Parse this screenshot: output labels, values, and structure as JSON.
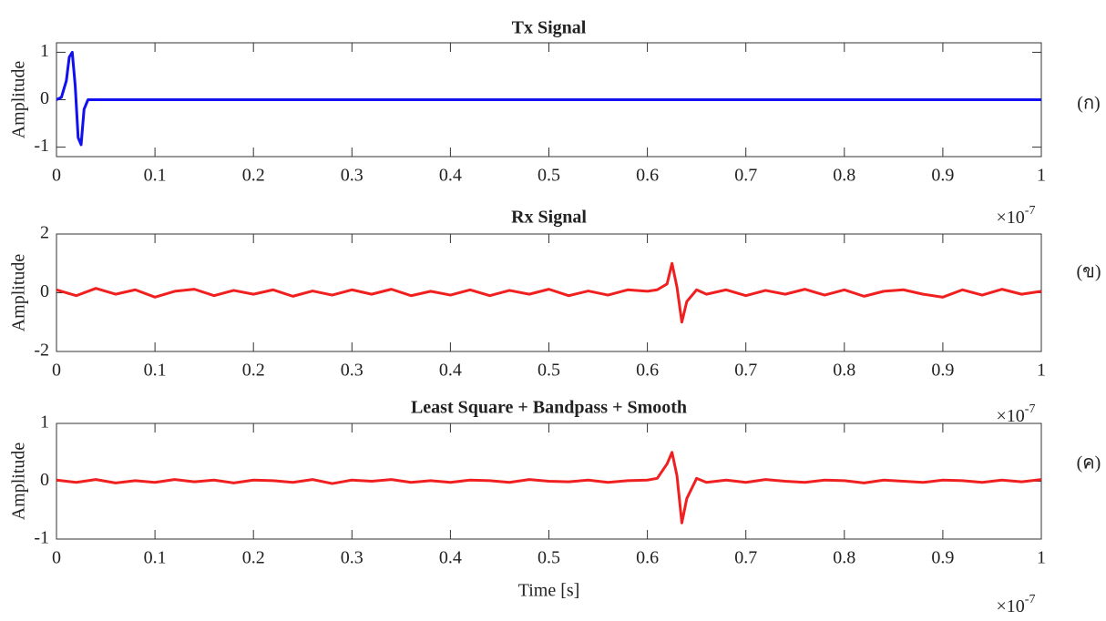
{
  "chart_data": [
    {
      "type": "line",
      "title": "Tx Signal",
      "y_label": "Amplitude",
      "panel_label": "(ก)",
      "x_multiplier": "×10",
      "x_exponent": "-7",
      "xlim": [
        0,
        1
      ],
      "xticks": [
        0,
        0.1,
        0.2,
        0.3,
        0.4,
        0.5,
        0.6,
        0.7,
        0.8,
        0.9,
        1
      ],
      "ylim": [
        -1.2,
        1.2
      ],
      "yticks": [
        -1,
        0,
        1
      ],
      "grid": false,
      "x": [
        0,
        0.005,
        0.01,
        0.013,
        0.016,
        0.019,
        0.022,
        0.025,
        0.028,
        0.032,
        0.05,
        0.1,
        0.2,
        0.3,
        0.4,
        0.5,
        0.6,
        0.7,
        0.8,
        0.9,
        1
      ],
      "series": [
        {
          "color": "#1010f0",
          "values": [
            0,
            0.05,
            0.4,
            0.9,
            1,
            0.3,
            -0.8,
            -0.95,
            -0.2,
            0,
            0,
            0,
            0,
            0,
            0,
            0,
            0,
            0,
            0,
            0,
            0
          ]
        }
      ]
    },
    {
      "type": "line",
      "title": "Rx Signal",
      "y_label": "Amplitude",
      "panel_label": "(ข)",
      "x_multiplier": "×10",
      "x_exponent": "-7",
      "xlim": [
        0,
        1
      ],
      "xticks": [
        0,
        0.1,
        0.2,
        0.3,
        0.4,
        0.5,
        0.6,
        0.7,
        0.8,
        0.9,
        1
      ],
      "ylim": [
        -2,
        2
      ],
      "yticks": [
        -2,
        0,
        2
      ],
      "grid": false,
      "x": [
        0,
        0.02,
        0.04,
        0.06,
        0.08,
        0.1,
        0.12,
        0.14,
        0.16,
        0.18,
        0.2,
        0.22,
        0.24,
        0.26,
        0.28,
        0.3,
        0.32,
        0.34,
        0.36,
        0.38,
        0.4,
        0.42,
        0.44,
        0.46,
        0.48,
        0.5,
        0.52,
        0.54,
        0.56,
        0.58,
        0.6,
        0.61,
        0.62,
        0.625,
        0.63,
        0.635,
        0.64,
        0.65,
        0.66,
        0.68,
        0.7,
        0.72,
        0.74,
        0.76,
        0.78,
        0.8,
        0.82,
        0.84,
        0.86,
        0.88,
        0.9,
        0.92,
        0.94,
        0.96,
        0.98,
        1
      ],
      "series": [
        {
          "color": "#f02020",
          "values": [
            0.1,
            -0.1,
            0.15,
            -0.05,
            0.1,
            -0.15,
            0.05,
            0.12,
            -0.1,
            0.08,
            -0.05,
            0.1,
            -0.12,
            0.06,
            -0.08,
            0.1,
            -0.05,
            0.12,
            -0.1,
            0.05,
            -0.08,
            0.1,
            -0.1,
            0.08,
            -0.05,
            0.12,
            -0.1,
            0.06,
            -0.08,
            0.1,
            0.05,
            0.1,
            0.3,
            1.0,
            0.2,
            -1.0,
            -0.3,
            0.1,
            -0.05,
            0.1,
            -0.1,
            0.08,
            -0.05,
            0.12,
            -0.08,
            0.1,
            -0.12,
            0.05,
            0.1,
            -0.05,
            -0.15,
            0.1,
            -0.08,
            0.12,
            -0.05,
            0.05
          ]
        }
      ]
    },
    {
      "type": "line",
      "title": "Least Square + Bandpass + Smooth",
      "y_label": "Amplitude",
      "panel_label": "(ค)",
      "x_label": "Time [s]",
      "x_multiplier": "×10",
      "x_exponent": "-7",
      "xlim": [
        0,
        1
      ],
      "xticks": [
        0,
        0.1,
        0.2,
        0.3,
        0.4,
        0.5,
        0.6,
        0.7,
        0.8,
        0.9,
        1
      ],
      "ylim": [
        -1,
        1
      ],
      "yticks": [
        -1,
        0,
        1
      ],
      "grid": false,
      "x": [
        0,
        0.02,
        0.04,
        0.06,
        0.08,
        0.1,
        0.12,
        0.14,
        0.16,
        0.18,
        0.2,
        0.22,
        0.24,
        0.26,
        0.28,
        0.3,
        0.32,
        0.34,
        0.36,
        0.38,
        0.4,
        0.42,
        0.44,
        0.46,
        0.48,
        0.5,
        0.52,
        0.54,
        0.56,
        0.58,
        0.6,
        0.61,
        0.62,
        0.625,
        0.63,
        0.635,
        0.64,
        0.65,
        0.66,
        0.68,
        0.7,
        0.72,
        0.74,
        0.76,
        0.78,
        0.8,
        0.82,
        0.84,
        0.86,
        0.88,
        0.9,
        0.92,
        0.94,
        0.96,
        0.98,
        1
      ],
      "series": [
        {
          "color": "#f02020",
          "values": [
            0.02,
            -0.02,
            0.03,
            -0.03,
            0.01,
            -0.02,
            0.03,
            -0.01,
            0.02,
            -0.03,
            0.02,
            0.01,
            -0.02,
            0.03,
            -0.04,
            0.02,
            0,
            0.03,
            -0.02,
            0.01,
            -0.02,
            0.02,
            0.01,
            -0.02,
            0.03,
            0,
            -0.01,
            0.02,
            -0.02,
            0.01,
            0.02,
            0.05,
            0.3,
            0.5,
            0.1,
            -0.72,
            -0.3,
            0.05,
            -0.02,
            0.02,
            -0.02,
            0.03,
            0,
            -0.02,
            0.02,
            0.01,
            -0.03,
            0.02,
            0,
            -0.02,
            0.02,
            0.01,
            -0.02,
            0.02,
            -0.01,
            0.03
          ]
        }
      ]
    }
  ]
}
